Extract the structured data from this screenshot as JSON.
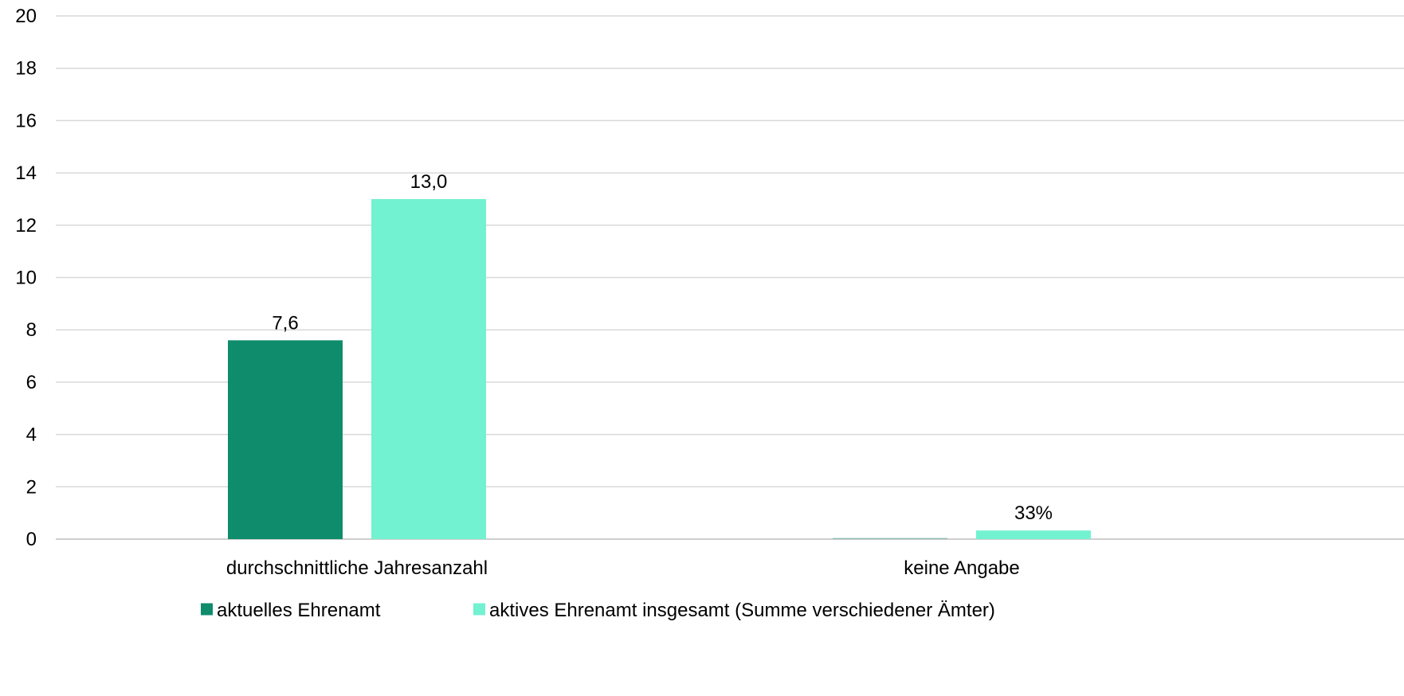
{
  "chart_data": {
    "type": "bar",
    "title": "",
    "xlabel": "",
    "ylabel": "",
    "ylim": [
      0,
      20
    ],
    "yticks": [
      0,
      2,
      4,
      6,
      8,
      10,
      12,
      14,
      16,
      18,
      20
    ],
    "grid": true,
    "legend_position": "bottom",
    "categories": [
      "durchschnittliche Jahresanzahl",
      "keine Angabe"
    ],
    "series": [
      {
        "name": "aktuelles Ehrenamt",
        "color": "#0e8c6b",
        "values": [
          7.6,
          0
        ],
        "labels": [
          "7,6",
          ""
        ]
      },
      {
        "name": "aktives Ehrenamt insgesamt (Summe verschiedener Ämter)",
        "color": "#72f2d0",
        "values": [
          13.0,
          0.33
        ],
        "labels": [
          "13,0",
          "33%"
        ]
      }
    ]
  }
}
